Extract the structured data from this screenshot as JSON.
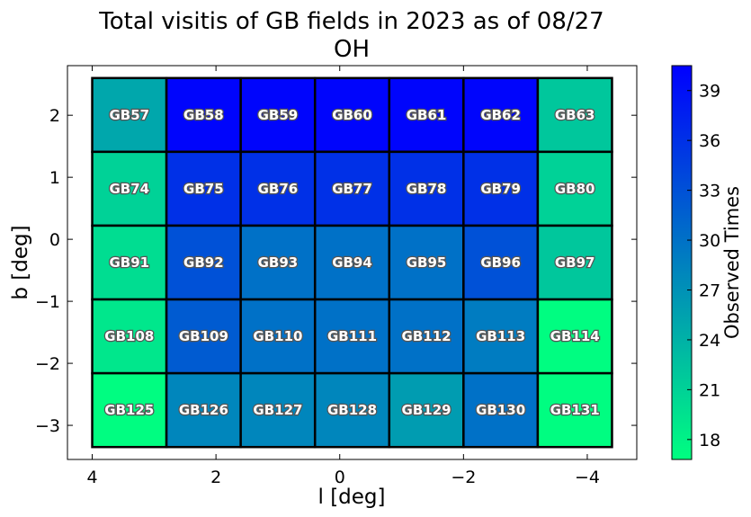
{
  "chart_data": {
    "type": "heatmap",
    "title": [
      "Total visitis of GB fields in 2023 as of 08/27",
      "OH"
    ],
    "xlabel": "l [deg]",
    "ylabel": "b [deg]",
    "colorbar_label": "Observed Times",
    "xlim": [
      4.4,
      -4.8
    ],
    "ylim": [
      -3.55,
      2.8
    ],
    "xticks": [
      4,
      2,
      0,
      -2,
      -4
    ],
    "xtick_labels": [
      "4",
      "2",
      "0",
      "−2",
      "−4"
    ],
    "yticks": [
      2,
      1,
      0,
      -1,
      -2,
      -3
    ],
    "ytick_labels": [
      "2",
      "1",
      "0",
      "−1",
      "−2",
      "−3"
    ],
    "x_edges": [
      4.0,
      2.8,
      1.6,
      0.4,
      -0.8,
      -2.0,
      -3.2,
      -4.4
    ],
    "y_edges": [
      2.6,
      1.41,
      0.22,
      -0.97,
      -2.16,
      -3.35
    ],
    "colormap": {
      "min_color": "#00ff80",
      "max_color": "#0000ff"
    },
    "color_range": [
      16.8,
      40.5
    ],
    "colorbar_ticks": [
      18,
      21,
      24,
      27,
      30,
      33,
      36,
      39
    ],
    "fields": [
      [
        "GB57",
        "GB58",
        "GB59",
        "GB60",
        "GB61",
        "GB62",
        "GB63"
      ],
      [
        "GB74",
        "GB75",
        "GB76",
        "GB77",
        "GB78",
        "GB79",
        "GB80"
      ],
      [
        "GB91",
        "GB92",
        "GB93",
        "GB94",
        "GB95",
        "GB96",
        "GB97"
      ],
      [
        "GB108",
        "GB109",
        "GB110",
        "GB111",
        "GB112",
        "GB113",
        "GB114"
      ],
      [
        "GB125",
        "GB126",
        "GB127",
        "GB128",
        "GB129",
        "GB130",
        "GB131"
      ]
    ],
    "values": [
      [
        25,
        40,
        40,
        40,
        40,
        40,
        22
      ],
      [
        21,
        36,
        36,
        36,
        36,
        36,
        21
      ],
      [
        20,
        33,
        30,
        30,
        30,
        33,
        22
      ],
      [
        19,
        32,
        30,
        30,
        30,
        29,
        17
      ],
      [
        17,
        28,
        28,
        28,
        26,
        30,
        17
      ]
    ]
  }
}
